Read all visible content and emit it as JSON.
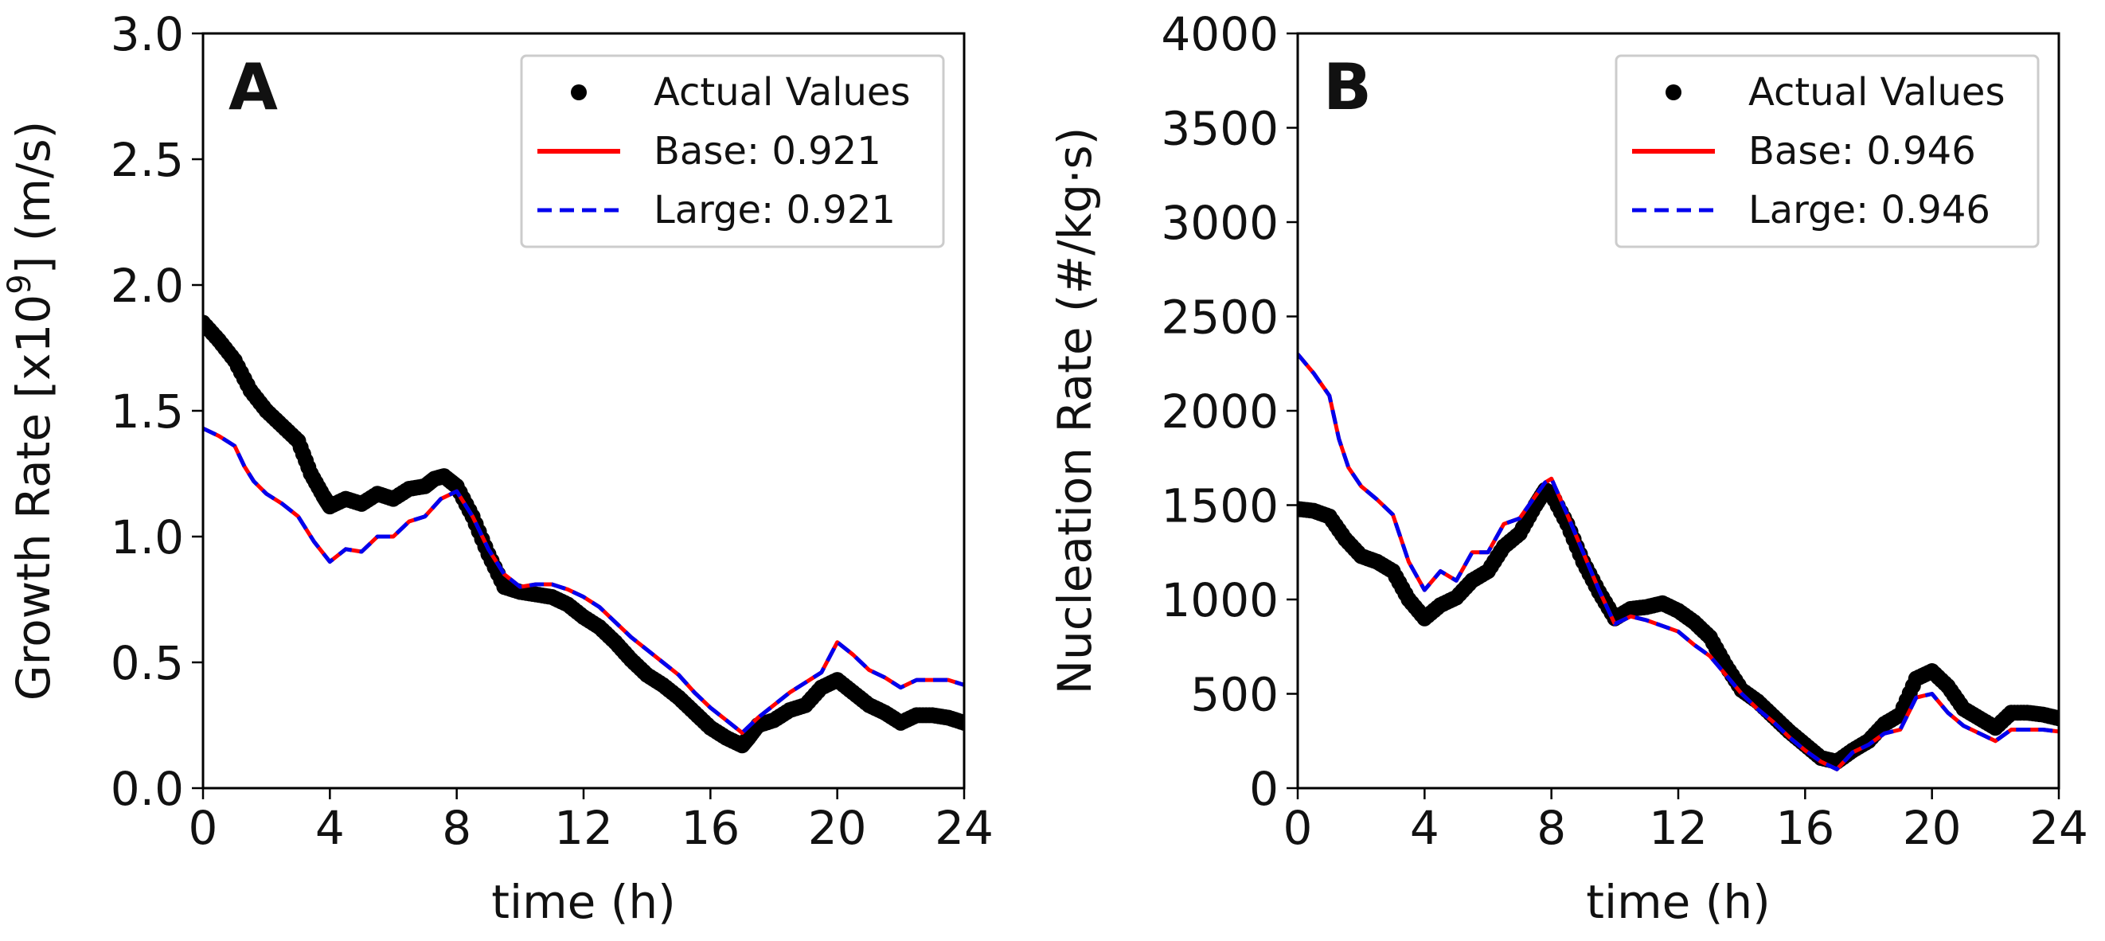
{
  "chart_data": [
    {
      "type": "line",
      "panel_label": "A",
      "title": "",
      "xlabel": "time (h)",
      "ylabel": "Growth Rate [x10",
      "ylabel_sup": "9",
      "ylabel_tail": "] (m/s)",
      "xlim": [
        0,
        24
      ],
      "ylim": [
        0,
        3.0
      ],
      "xticks": [
        "0",
        "4",
        "8",
        "12",
        "16",
        "20",
        "24"
      ],
      "yticks": [
        "0.0",
        "0.5",
        "1.0",
        "1.5",
        "2.0",
        "2.5",
        "3.0"
      ],
      "grid": false,
      "legend_position": "top-right",
      "legend": [
        "Actual Values",
        "Base: 0.921",
        "Large: 0.921"
      ],
      "actual_values": {
        "t": [
          0,
          0.5,
          1.0,
          1.5,
          2.0,
          2.5,
          3.0,
          3.4,
          3.8,
          4.0,
          4.5,
          5.0,
          5.5,
          6.0,
          6.5,
          7.0,
          7.3,
          7.6,
          8.0,
          8.5,
          9.0,
          9.5,
          10.0,
          10.5,
          11.0,
          11.5,
          12.0,
          12.5,
          13.0,
          13.5,
          14.0,
          14.5,
          15.0,
          15.5,
          16.0,
          16.5,
          17.0,
          17.2,
          17.5,
          18.0,
          18.5,
          19.0,
          19.5,
          20.0,
          20.5,
          21.0,
          21.5,
          22.0,
          22.5,
          23.0,
          23.5,
          24.0
        ],
        "y": [
          1.85,
          1.78,
          1.7,
          1.58,
          1.5,
          1.44,
          1.38,
          1.25,
          1.16,
          1.12,
          1.15,
          1.13,
          1.17,
          1.15,
          1.19,
          1.2,
          1.23,
          1.24,
          1.2,
          1.08,
          0.93,
          0.8,
          0.78,
          0.77,
          0.76,
          0.73,
          0.68,
          0.64,
          0.58,
          0.51,
          0.45,
          0.41,
          0.36,
          0.3,
          0.24,
          0.2,
          0.17,
          0.2,
          0.25,
          0.27,
          0.31,
          0.33,
          0.4,
          0.43,
          0.38,
          0.33,
          0.3,
          0.26,
          0.29,
          0.29,
          0.28,
          0.26
        ]
      },
      "series": [
        {
          "name": "Base: 0.921",
          "color": "#ff0000",
          "style": "solid",
          "t": [
            0,
            0.5,
            1.0,
            1.3,
            1.6,
            2.0,
            2.5,
            3.0,
            3.5,
            4.0,
            4.5,
            5.0,
            5.5,
            6.0,
            6.5,
            7.0,
            7.5,
            8.0,
            8.5,
            9.0,
            9.5,
            10.0,
            10.5,
            11.0,
            11.5,
            12.0,
            12.5,
            13.0,
            13.5,
            14.0,
            14.5,
            15.0,
            15.5,
            16.0,
            16.5,
            17.0,
            17.5,
            18.0,
            18.5,
            19.0,
            19.5,
            20.0,
            20.5,
            21.0,
            21.5,
            22.0,
            22.5,
            23.0,
            23.5,
            24.0
          ],
          "y": [
            1.43,
            1.4,
            1.36,
            1.28,
            1.22,
            1.17,
            1.13,
            1.08,
            0.98,
            0.9,
            0.95,
            0.94,
            1.0,
            1.0,
            1.06,
            1.08,
            1.15,
            1.18,
            1.08,
            0.95,
            0.85,
            0.8,
            0.81,
            0.81,
            0.79,
            0.76,
            0.72,
            0.66,
            0.6,
            0.55,
            0.5,
            0.45,
            0.38,
            0.32,
            0.27,
            0.22,
            0.28,
            0.33,
            0.38,
            0.42,
            0.46,
            0.58,
            0.53,
            0.47,
            0.44,
            0.4,
            0.43,
            0.43,
            0.43,
            0.41
          ]
        },
        {
          "name": "Large: 0.921",
          "color": "#0000ee",
          "style": "dashed",
          "t": [
            0,
            0.5,
            1.0,
            1.3,
            1.6,
            2.0,
            2.5,
            3.0,
            3.5,
            4.0,
            4.5,
            5.0,
            5.5,
            6.0,
            6.5,
            7.0,
            7.5,
            8.0,
            8.5,
            9.0,
            9.5,
            10.0,
            10.5,
            11.0,
            11.5,
            12.0,
            12.5,
            13.0,
            13.5,
            14.0,
            14.5,
            15.0,
            15.5,
            16.0,
            16.5,
            17.0,
            17.5,
            18.0,
            18.5,
            19.0,
            19.5,
            20.0,
            20.5,
            21.0,
            21.5,
            22.0,
            22.5,
            23.0,
            23.5,
            24.0
          ],
          "y": [
            1.43,
            1.4,
            1.36,
            1.28,
            1.22,
            1.17,
            1.13,
            1.08,
            0.98,
            0.9,
            0.95,
            0.94,
            1.0,
            1.0,
            1.06,
            1.08,
            1.15,
            1.18,
            1.08,
            0.95,
            0.85,
            0.8,
            0.81,
            0.81,
            0.79,
            0.76,
            0.72,
            0.66,
            0.6,
            0.55,
            0.5,
            0.45,
            0.38,
            0.32,
            0.27,
            0.22,
            0.28,
            0.33,
            0.38,
            0.42,
            0.46,
            0.58,
            0.53,
            0.47,
            0.44,
            0.4,
            0.43,
            0.43,
            0.43,
            0.41
          ]
        }
      ]
    },
    {
      "type": "line",
      "panel_label": "B",
      "title": "",
      "xlabel": "time (h)",
      "ylabel": "Nucleation Rate (#/kg·s)",
      "ylabel_sup": "",
      "ylabel_tail": "",
      "xlim": [
        0,
        24
      ],
      "ylim": [
        0,
        4000
      ],
      "xticks": [
        "0",
        "4",
        "8",
        "12",
        "16",
        "20",
        "24"
      ],
      "yticks": [
        "0",
        "500",
        "1000",
        "1500",
        "2000",
        "2500",
        "3000",
        "3500",
        "4000"
      ],
      "grid": false,
      "legend_position": "top-right",
      "legend": [
        "Actual Values",
        "Base: 0.946",
        "Large: 0.946"
      ],
      "actual_values": {
        "t": [
          0,
          0.5,
          1.0,
          1.5,
          2.0,
          2.5,
          3.0,
          3.5,
          4.0,
          4.5,
          5.0,
          5.5,
          6.0,
          6.5,
          7.0,
          7.5,
          7.8,
          8.0,
          8.5,
          9.0,
          9.5,
          10.0,
          10.5,
          11.0,
          11.5,
          12.0,
          12.5,
          13.0,
          13.5,
          14.0,
          14.5,
          15.0,
          15.5,
          16.0,
          16.5,
          17.0,
          17.5,
          18.0,
          18.5,
          19.0,
          19.5,
          20.0,
          20.5,
          21.0,
          21.5,
          22.0,
          22.5,
          23.0,
          23.5,
          24.0
        ],
        "y": [
          1480,
          1470,
          1440,
          1320,
          1230,
          1200,
          1150,
          1000,
          900,
          970,
          1010,
          1100,
          1150,
          1280,
          1350,
          1500,
          1580,
          1560,
          1400,
          1200,
          1040,
          900,
          950,
          960,
          980,
          940,
          880,
          800,
          650,
          520,
          460,
          380,
          300,
          230,
          160,
          140,
          200,
          250,
          340,
          390,
          580,
          620,
          540,
          420,
          370,
          320,
          400,
          400,
          390,
          370
        ]
      },
      "series": [
        {
          "name": "Base: 0.946",
          "color": "#ff0000",
          "style": "solid",
          "t": [
            0,
            0.5,
            1.0,
            1.3,
            1.6,
            2.0,
            2.5,
            3.0,
            3.5,
            4.0,
            4.5,
            5.0,
            5.5,
            6.0,
            6.5,
            7.0,
            7.5,
            7.8,
            8.0,
            8.5,
            9.0,
            9.5,
            10.0,
            10.5,
            11.0,
            11.5,
            12.0,
            12.5,
            13.0,
            13.5,
            14.0,
            14.5,
            15.0,
            15.5,
            16.0,
            16.5,
            17.0,
            17.5,
            18.0,
            18.5,
            19.0,
            19.5,
            20.0,
            20.5,
            21.0,
            21.5,
            22.0,
            22.5,
            23.0,
            23.5,
            24.0
          ],
          "y": [
            2300,
            2200,
            2080,
            1850,
            1700,
            1600,
            1530,
            1450,
            1200,
            1050,
            1150,
            1100,
            1250,
            1250,
            1400,
            1430,
            1550,
            1620,
            1640,
            1450,
            1250,
            1050,
            870,
            910,
            890,
            860,
            830,
            760,
            700,
            600,
            500,
            420,
            350,
            270,
            200,
            140,
            100,
            190,
            230,
            290,
            310,
            480,
            500,
            400,
            330,
            290,
            250,
            310,
            310,
            310,
            300
          ]
        },
        {
          "name": "Large: 0.946",
          "color": "#0000ee",
          "style": "dashed",
          "t": [
            0,
            0.5,
            1.0,
            1.3,
            1.6,
            2.0,
            2.5,
            3.0,
            3.5,
            4.0,
            4.5,
            5.0,
            5.5,
            6.0,
            6.5,
            7.0,
            7.5,
            7.8,
            8.0,
            8.5,
            9.0,
            9.5,
            10.0,
            10.5,
            11.0,
            11.5,
            12.0,
            12.5,
            13.0,
            13.5,
            14.0,
            14.5,
            15.0,
            15.5,
            16.0,
            16.5,
            17.0,
            17.5,
            18.0,
            18.5,
            19.0,
            19.5,
            20.0,
            20.5,
            21.0,
            21.5,
            22.0,
            22.5,
            23.0,
            23.5,
            24.0
          ],
          "y": [
            2300,
            2200,
            2080,
            1850,
            1700,
            1600,
            1530,
            1450,
            1200,
            1050,
            1150,
            1100,
            1250,
            1250,
            1400,
            1430,
            1550,
            1620,
            1640,
            1450,
            1250,
            1050,
            870,
            910,
            890,
            860,
            830,
            760,
            700,
            600,
            500,
            420,
            350,
            270,
            200,
            140,
            100,
            190,
            230,
            290,
            310,
            480,
            500,
            400,
            330,
            290,
            250,
            310,
            310,
            310,
            300
          ]
        }
      ]
    }
  ]
}
